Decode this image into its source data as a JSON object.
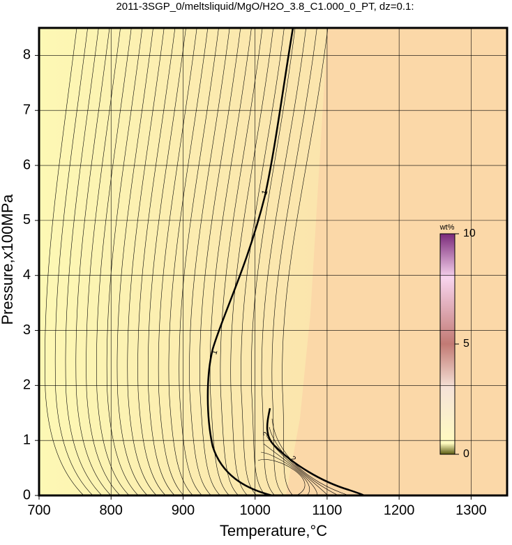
{
  "chart_data": {
    "type": "contour",
    "title": "2011-3SGP_0/meltsliquid/MgO/H2O_3.8_C1.000_0_PT, dz=0.1:",
    "x_label": "Temperature,°C",
    "y_label": "Pressure,x100MPa",
    "xlim": [
      700,
      1350
    ],
    "xticks": [
      700,
      800,
      900,
      1000,
      1100,
      1200,
      1300
    ],
    "ylim": [
      0,
      8.5
    ],
    "yticks": [
      0,
      1,
      2,
      3,
      4,
      5,
      6,
      7,
      8
    ],
    "grid": true,
    "contour_labels": [
      1,
      1,
      2,
      2
    ],
    "colorbar": {
      "label": "wt%",
      "lim": [
        0,
        10
      ],
      "ticks": [
        0,
        5,
        10
      ]
    }
  }
}
